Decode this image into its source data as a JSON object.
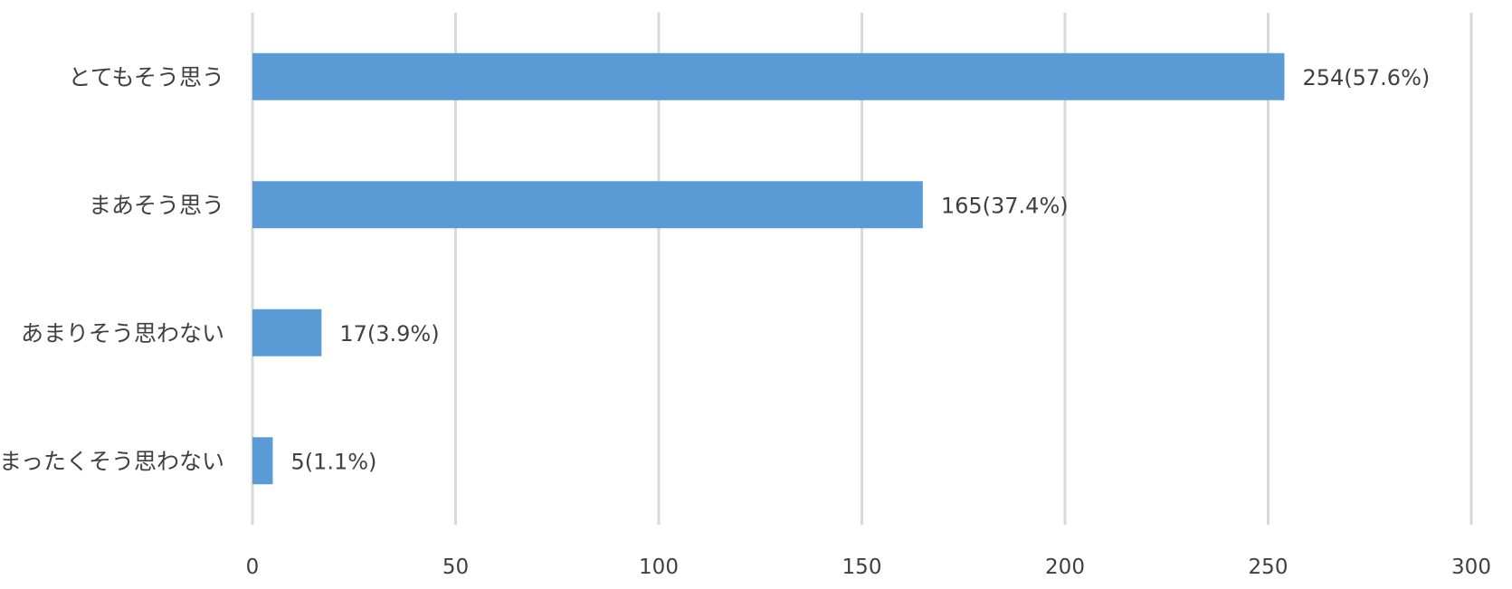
{
  "chart_data": {
    "type": "bar",
    "orientation": "horizontal",
    "categories": [
      "とてもそう思う",
      "まあそう思う",
      "あまりそう思わない",
      "まったくそう思わない"
    ],
    "values": [
      254,
      165,
      17,
      5
    ],
    "data_labels": [
      "254(57.6%)",
      "165(37.4%)",
      "17(3.9%)",
      "5(1.1%)"
    ],
    "xlim": [
      0,
      300
    ],
    "xticks": [
      "0",
      "50",
      "100",
      "150",
      "200",
      "250",
      "300"
    ],
    "grid": "vertical",
    "bar_color": "#5b9bd5"
  }
}
